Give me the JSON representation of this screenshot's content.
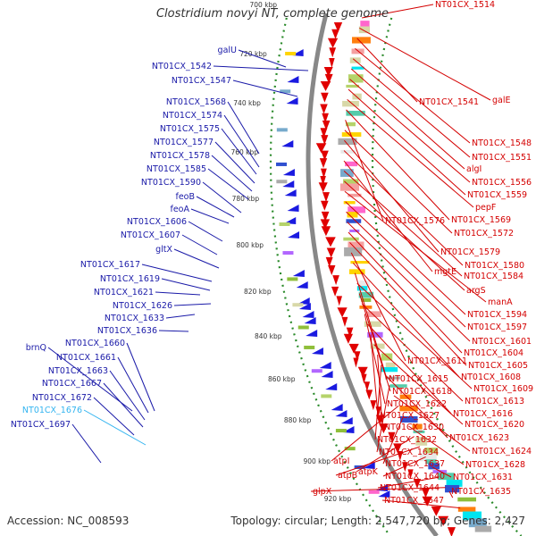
{
  "title": "Clostridium novyi NT, complete genome",
  "footer": {
    "accession": "Accession: NC_008593",
    "topology": "Topology: circular; Length: 2,547,720 bp; Genes: 2,427"
  },
  "colors": {
    "left_label": "#1a1aa8",
    "left_label_highlight": "#33b4f0",
    "right_label": "#d40000",
    "backbone": "#888888",
    "gc_dots": "#2a8a2a",
    "forward_genes": "#e00000",
    "reverse_genes": "#1a1ae0"
  },
  "ticks": [
    "700 kbp",
    "720 kbp",
    "740 kbp",
    "760 kbp",
    "780 kbp",
    "800 kbp",
    "820 kbp",
    "840 kbp",
    "860 kbp",
    "880 kbp",
    "900 kbp",
    "920 kbp"
  ],
  "left_labels": [
    {
      "text": "galU"
    },
    {
      "text": "NT01CX_1542"
    },
    {
      "text": "NT01CX_1547"
    },
    {
      "text": "NT01CX_1568"
    },
    {
      "text": "NT01CX_1574"
    },
    {
      "text": "NT01CX_1575"
    },
    {
      "text": "NT01CX_1577"
    },
    {
      "text": "NT01CX_1578"
    },
    {
      "text": "NT01CX_1585"
    },
    {
      "text": "NT01CX_1590"
    },
    {
      "text": "feoB"
    },
    {
      "text": "feoA"
    },
    {
      "text": "NT01CX_1606"
    },
    {
      "text": "NT01CX_1607"
    },
    {
      "text": "gltX"
    },
    {
      "text": "NT01CX_1617"
    },
    {
      "text": "NT01CX_1619"
    },
    {
      "text": "NT01CX_1621"
    },
    {
      "text": "NT01CX_1626"
    },
    {
      "text": "NT01CX_1633"
    },
    {
      "text": "NT01CX_1636"
    },
    {
      "text": "brnQ"
    },
    {
      "text": "NT01CX_1660"
    },
    {
      "text": "NT01CX_1661"
    },
    {
      "text": "NT01CX_1663"
    },
    {
      "text": "NT01CX_1667"
    },
    {
      "text": "NT01CX_1672"
    },
    {
      "text": "NT01CX_1676",
      "highlight": true
    },
    {
      "text": "NT01CX_1697"
    }
  ],
  "right_labels": [
    {
      "text": "NT01CX_1514"
    },
    {
      "text": "galE"
    },
    {
      "text": "NT01CX_1541"
    },
    {
      "text": "NT01CX_1548"
    },
    {
      "text": "NT01CX_1551"
    },
    {
      "text": "algI"
    },
    {
      "text": "NT01CX_1556"
    },
    {
      "text": "NT01CX_1559"
    },
    {
      "text": "pepF"
    },
    {
      "text": "NT01CX_1569"
    },
    {
      "text": "NT01CX_1576"
    },
    {
      "text": "NT01CX_1572"
    },
    {
      "text": "NT01CX_1579"
    },
    {
      "text": "NT01CX_1580"
    },
    {
      "text": "mgtE"
    },
    {
      "text": "NT01CX_1584"
    },
    {
      "text": "argS"
    },
    {
      "text": "manA"
    },
    {
      "text": "NT01CX_1594"
    },
    {
      "text": "NT01CX_1597"
    },
    {
      "text": "NT01CX_1601"
    },
    {
      "text": "NT01CX_1604"
    },
    {
      "text": "NT01CX_1605"
    },
    {
      "text": "NT01CX_1611"
    },
    {
      "text": "NT01CX_1608"
    },
    {
      "text": "NT01CX_1615"
    },
    {
      "text": "NT01CX_1609"
    },
    {
      "text": "NT01CX_1618"
    },
    {
      "text": "NT01CX_1613"
    },
    {
      "text": "NT01CX_1622"
    },
    {
      "text": "NT01CX_1616"
    },
    {
      "text": "NT01CX_1627"
    },
    {
      "text": "NT01CX_1620"
    },
    {
      "text": "NT01CX_1630"
    },
    {
      "text": "NT01CX_1632"
    },
    {
      "text": "NT01CX_1623"
    },
    {
      "text": "NT01CX_1634"
    },
    {
      "text": "NT01CX_1624"
    },
    {
      "text": "atpI"
    },
    {
      "text": "NT01CX_1637"
    },
    {
      "text": "NT01CX_1628"
    },
    {
      "text": "atpK"
    },
    {
      "text": "atpB"
    },
    {
      "text": "NT01CX_1640"
    },
    {
      "text": "NT01CX_1631"
    },
    {
      "text": "NT01CX_1644"
    },
    {
      "text": "glpX"
    },
    {
      "text": "NT01CX_1635"
    },
    {
      "text": "NT01CX_1647"
    }
  ]
}
